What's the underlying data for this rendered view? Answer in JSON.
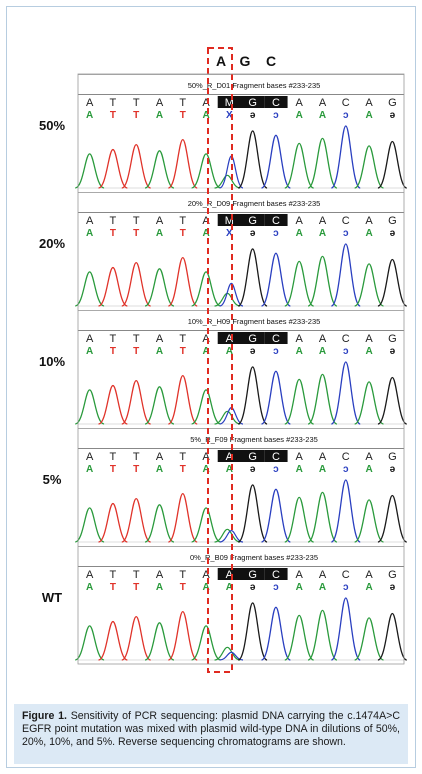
{
  "figure": {
    "top_bases": [
      "A",
      "G",
      "C"
    ],
    "panels": [
      {
        "dilution": "50%",
        "track_label": "50%_R_D01 Fragment bases #233-235",
        "mutant_calls": [
          "M",
          "G",
          "C"
        ]
      },
      {
        "dilution": "20%",
        "track_label": "20%_R_D09 Fragment bases #233-235",
        "mutant_calls": [
          "M",
          "G",
          "C"
        ]
      },
      {
        "dilution": "10%",
        "track_label": "10%_R_H09 Fragment bases #233-235",
        "mutant_calls": [
          "A",
          "G",
          "C"
        ]
      },
      {
        "dilution": "5%",
        "track_label": "5%_R_F09 Fragment bases #233-235",
        "mutant_calls": [
          "A",
          "G",
          "C"
        ]
      },
      {
        "dilution": "WT",
        "track_label": "0%_R_B09 Fragment bases #233-235",
        "mutant_calls": [
          "A",
          "G",
          "C"
        ]
      }
    ],
    "sequence": [
      "A",
      "T",
      "T",
      "A",
      "T",
      "A",
      "M",
      "G",
      "C",
      "A",
      "A",
      "C",
      "A",
      "G"
    ],
    "colors": {
      "A": "#2a9a3c",
      "T": "#e0332a",
      "G": "#1a1a1a",
      "C": "#2a3fc0",
      "highlight": "#e02a20"
    }
  },
  "caption": {
    "label": "Figure 1.",
    "text": "Sensitivity of PCR sequencing: plasmid DNA carrying the c.1474A>C EGFR point mutation was mixed with plasmid wild-type DNA in dilutions of 50%, 20%, 10%, and 5%. Reverse sequencing chromatograms are shown."
  }
}
